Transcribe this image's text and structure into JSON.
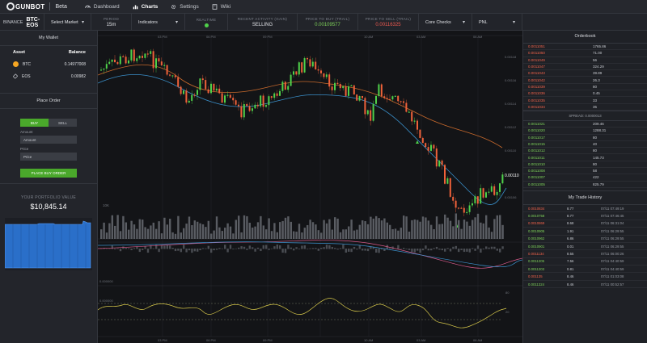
{
  "brand": {
    "name": "GUNBOT",
    "tag": "Beta"
  },
  "nav": [
    {
      "label": "Dashboard",
      "icon": "dashboard-icon"
    },
    {
      "label": "Charts",
      "icon": "bar-chart-icon",
      "active": true
    },
    {
      "label": "Settings",
      "icon": "gear-icon"
    },
    {
      "label": "Wiki",
      "icon": "book-icon"
    }
  ],
  "ticker": {
    "exchange": "BINANCE",
    "pair": "BTC-EOS",
    "market_select": "Select Market",
    "period_label": "PERIOD",
    "period_value": "15m",
    "indicators": "Indicators",
    "realtime_label": "REALTIME",
    "activity_label": "RECENT ACTIVITY (GAIN)",
    "activity_value": "SELLING",
    "buy_label": "PRICE TO BUY (TRAIL)",
    "buy_value": "0.00109577",
    "sell_label": "PRICE TO SELL (TRAIL)",
    "sell_value": "0.00116325",
    "core_checks": "Core Checks",
    "pnl": "PNL"
  },
  "wallet": {
    "title": "My Wallet",
    "col_asset": "Asset",
    "col_balance": "Balance",
    "rows": [
      {
        "asset": "BTC",
        "balance": "0.14977008"
      },
      {
        "asset": "EOS",
        "balance": "0.00982"
      }
    ]
  },
  "order": {
    "title": "Place Order",
    "buy": "BUY",
    "sell": "SELL",
    "amount_label": "Amount",
    "amount_placeholder": "Amount",
    "price_label": "Price",
    "price_placeholder": "Price",
    "submit": "PLACE BUY ORDER"
  },
  "portfolio": {
    "label": "YOUR PORTFOLIO VALUE",
    "value": "$10,845.14"
  },
  "orderbook": {
    "title": "Orderbook",
    "asks": [
      {
        "price": "0.0011051",
        "qty": "1765.86"
      },
      {
        "price": "0.0011050",
        "qty": "71.00"
      },
      {
        "price": "0.0011049",
        "qty": "56"
      },
      {
        "price": "0.0011047",
        "qty": "324.29"
      },
      {
        "price": "0.0011043",
        "qty": "39.89"
      },
      {
        "price": "0.0011042",
        "qty": "26.3"
      },
      {
        "price": "0.0011039",
        "qty": "80"
      },
      {
        "price": "0.0011036",
        "qty": "0.45"
      },
      {
        "price": "0.0011035",
        "qty": "33"
      },
      {
        "price": "0.0011034",
        "qty": "35"
      }
    ],
    "spread": "SPREAD:  0.0000013",
    "bids": [
      {
        "price": "0.0011021",
        "qty": "209.46"
      },
      {
        "price": "0.0011020",
        "qty": "1288.31"
      },
      {
        "price": "0.0011017",
        "qty": "80"
      },
      {
        "price": "0.0011015",
        "qty": "40"
      },
      {
        "price": "0.0011012",
        "qty": "80"
      },
      {
        "price": "0.0011011",
        "qty": "145.73"
      },
      {
        "price": "0.0011010",
        "qty": "80"
      },
      {
        "price": "0.0011008",
        "qty": "58"
      },
      {
        "price": "0.0011007",
        "qty": "422"
      },
      {
        "price": "0.0011005",
        "qty": "825.79"
      }
    ]
  },
  "history": {
    "title": "My Trade History",
    "rows": [
      {
        "price": "0.0010834",
        "qty": "8.77",
        "time": "07/11 07:49:19",
        "side": "sell"
      },
      {
        "price": "0.0010758",
        "qty": "8.77",
        "time": "07/11 07:46:45",
        "side": "buy"
      },
      {
        "price": "0.0010869",
        "qty": "8.68",
        "time": "07/11 06:31:04",
        "side": "sell"
      },
      {
        "price": "0.0010905",
        "qty": "1.91",
        "time": "07/11 06:29:55",
        "side": "buy"
      },
      {
        "price": "0.0010962",
        "qty": "6.86",
        "time": "07/11 06:29:55",
        "side": "buy"
      },
      {
        "price": "0.0010901",
        "qty": "0.01",
        "time": "07/11 06:29:55",
        "side": "buy"
      },
      {
        "price": "0.0011134",
        "qty": "8.55",
        "time": "07/11 06:00:26",
        "side": "sell"
      },
      {
        "price": "0.0011205",
        "qty": "7.56",
        "time": "07/11 04:40:59",
        "side": "buy"
      },
      {
        "price": "0.0011203",
        "qty": "0.81",
        "time": "07/11 04:40:59",
        "side": "buy"
      },
      {
        "price": "0.001135",
        "qty": "8.46",
        "time": "07/11 01:03:08",
        "side": "sell"
      },
      {
        "price": "0.0011324",
        "qty": "8.46",
        "time": "07/11 00:52:57",
        "side": "buy"
      }
    ]
  },
  "chart": {
    "time_labels": [
      "03 PM",
      "06 PM",
      "09 PM",
      "10 AM",
      "03 AM",
      "06 AM"
    ],
    "price_ticks": [
      "0.00118",
      "0.00116",
      "0.00114",
      "0.00112",
      "0.00110",
      "0.00108",
      "0.00106"
    ],
    "current_price": "0.00110",
    "volume_tick": "10K",
    "osc_left_ticks": [
      "0.000000",
      "0.000000"
    ],
    "osc_right_ticks": [
      "80",
      "20"
    ]
  },
  "colors": {
    "up": "#4fd14a",
    "down": "#f0623a",
    "accent_buy": "#4aa82b",
    "portfolio_blue": "#2f80ed"
  }
}
